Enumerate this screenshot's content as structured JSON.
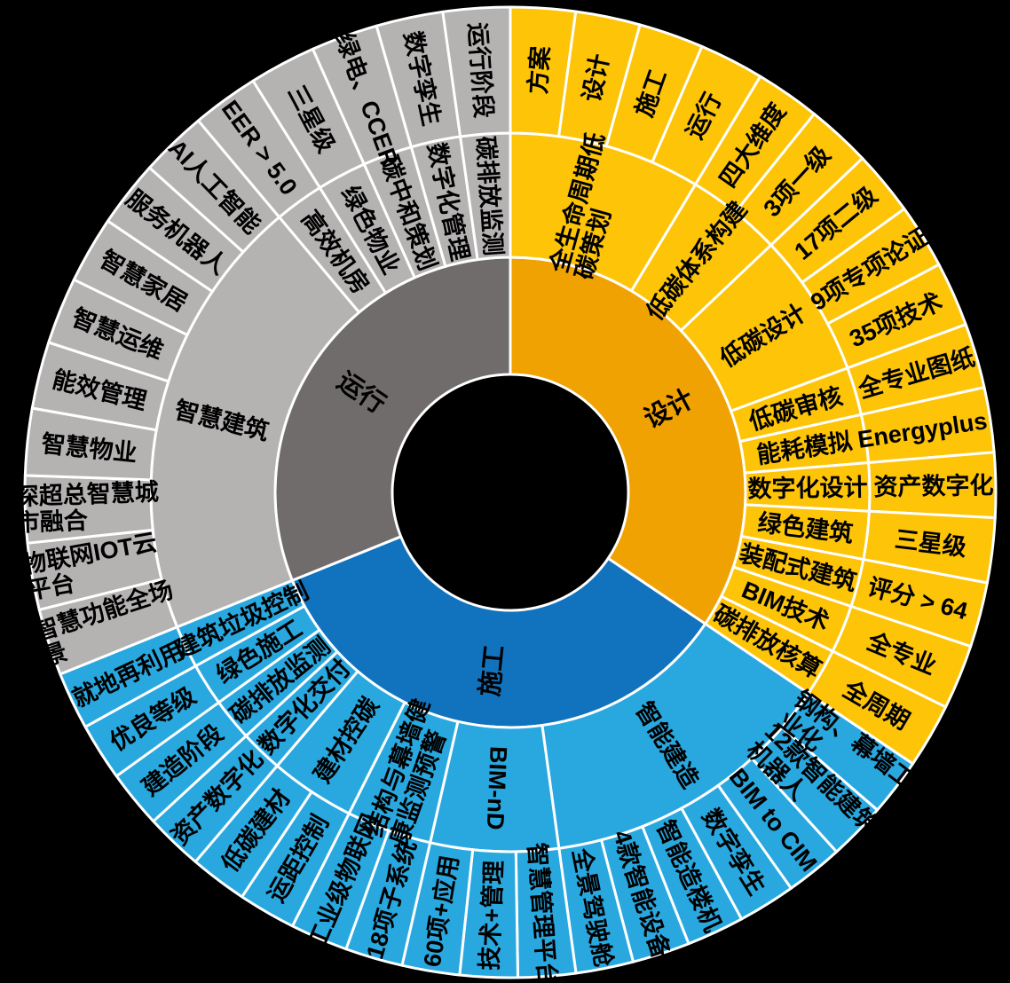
{
  "chart_data": {
    "type": "sunburst",
    "title": "",
    "legend": "none",
    "background_color": "#000000",
    "divider_color": "#FFFFFF",
    "label_color": "#000000",
    "rings": [
      "phase",
      "category",
      "item"
    ],
    "quadrants": [
      {
        "label": "设计",
        "angle_start": 0,
        "angle_end": 124,
        "inner_color": "#F0A202",
        "ring_color": "#FDC408",
        "branches": [
          {
            "label": "全生命周期低\n碳策划",
            "children": [
              "方案",
              "设计",
              "施工",
              "运行"
            ]
          },
          {
            "label": "低碳体系构建",
            "children": [
              "四大维度",
              "3项一级"
            ]
          },
          {
            "label": "低碳设计",
            "children": [
              "17项二级",
              "9项专项论证",
              "35项技术"
            ]
          },
          {
            "label": "低碳审核",
            "children": [
              "全专业图纸"
            ]
          },
          {
            "label": "能耗模拟",
            "children": [
              "Energyplus"
            ]
          },
          {
            "label": "数字化设计",
            "children": [
              "资产数字化"
            ]
          },
          {
            "label": "绿色建筑",
            "children": [
              "三星级"
            ]
          },
          {
            "label": "装配式建筑",
            "children": [
              "评分 > 64"
            ]
          },
          {
            "label": "BIM技术",
            "children": [
              "全专业"
            ]
          },
          {
            "label": "碳排放核算",
            "children": [
              "全周期"
            ]
          }
        ]
      },
      {
        "label": "施工",
        "angle_start": 124,
        "angle_end": 248,
        "inner_color": "#1173BD",
        "ring_color": "#29A8E0",
        "branches": [
          {
            "label": "智能建造",
            "children": [
              "钢构、幕墙工\n业化",
              "12款智能建筑\n机器人",
              "BIM to CIM",
              "数字孪生",
              "智能造楼机",
              "4款智能设备",
              "全景驾驶舱"
            ]
          },
          {
            "label": "BIM-nD",
            "children": [
              "智慧管理平台",
              "技术+管理",
              "60项+应用"
            ]
          },
          {
            "label": "结构与幕墙健\n康监测预警",
            "children": [
              "18项子系统",
              "工业级物联网"
            ]
          },
          {
            "label": "建材控碳",
            "children": [
              "运距控制",
              "低碳建材"
            ]
          },
          {
            "label": "数字化交付",
            "children": [
              "资产数字化"
            ]
          },
          {
            "label": "碳排放监测",
            "children": [
              "建造阶段"
            ]
          },
          {
            "label": "绿色施工",
            "children": [
              "优良等级"
            ]
          },
          {
            "label": "建筑垃圾控制",
            "children": [
              "就地再利用"
            ]
          }
        ]
      },
      {
        "label": "运行",
        "angle_start": 248,
        "angle_end": 360,
        "inner_color": "#716C6C",
        "ring_color": "#B5B2B2",
        "branches": [
          {
            "label": "智慧建筑",
            "children": [
              "智慧功能全场\n景",
              "物联网IOT云\n平台",
              "深超总智慧城\n市融合",
              "智慧物业",
              "能效管理",
              "智慧运维",
              "智慧家居",
              "服务机器人",
              "AI人工智能"
            ]
          },
          {
            "label": "高效机房",
            "children": [
              "EER > 5.0"
            ]
          },
          {
            "label": "绿色物业",
            "children": [
              "三星级"
            ]
          },
          {
            "label": "碳中和策划",
            "children": [
              "绿电、CCER"
            ]
          },
          {
            "label": "数字化管理",
            "children": [
              "数字孪生"
            ]
          },
          {
            "label": "碳排放监测",
            "children": [
              "运行阶段"
            ]
          }
        ]
      }
    ]
  }
}
